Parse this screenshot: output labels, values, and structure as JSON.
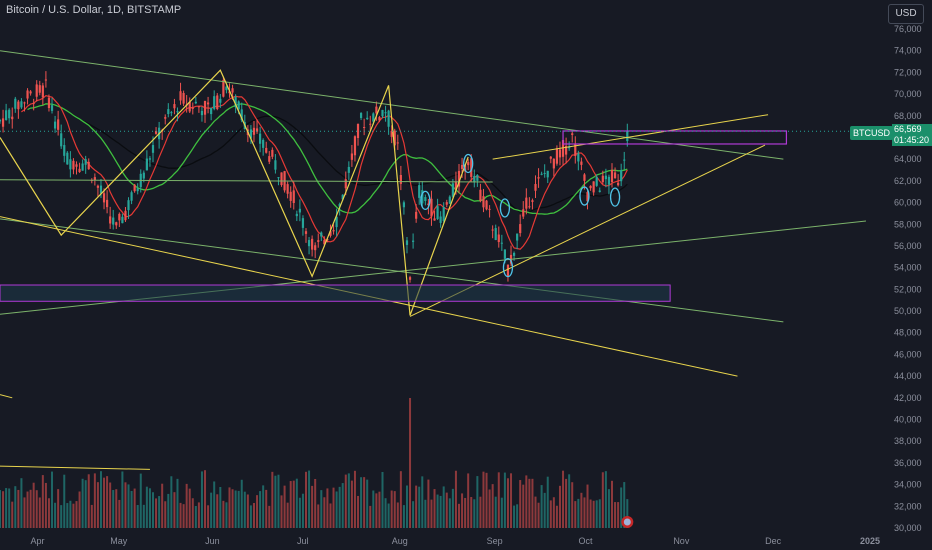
{
  "header": {
    "title": "Bitcoin / U.S. Dollar, 1D, BITSTAMP",
    "currency_button": "USD"
  },
  "price_badge": {
    "symbol": "BTCUSD",
    "price": "66,569",
    "countdown": "01:45:20"
  },
  "colors": {
    "background": "#171a24",
    "up": "#26a69a",
    "down": "#ef5350",
    "ma_black": "#0a0c10",
    "ma_red": "#e53935",
    "ma_green": "#3fbf3f",
    "trend_yellow": "#e8d44d",
    "trend_green": "#7cb36b",
    "zone_purple": "#b03ad6",
    "zone_fill": "#1e3a4a",
    "circle_cyan": "#4fc3e8"
  },
  "chart_data": {
    "type": "candlestick",
    "title": "Bitcoin / U.S. Dollar, 1D, BITSTAMP",
    "x_ticks": [
      "Apr",
      "May",
      "Jun",
      "Jul",
      "Aug",
      "Sep",
      "Oct",
      "Nov",
      "Dec",
      "2025"
    ],
    "y_ticks": [
      "76,000",
      "74,000",
      "72,000",
      "70,000",
      "68,000",
      "66,000",
      "64,000",
      "62,000",
      "60,000",
      "58,000",
      "56,000",
      "54,000",
      "52,000",
      "50,000",
      "48,000",
      "46,000",
      "44,000",
      "42,000",
      "40,000",
      "38,000",
      "36,000",
      "34,000",
      "32,000",
      "30,000"
    ],
    "ylim": [
      30000,
      77000
    ],
    "last_price": 66569,
    "close_series": [
      {
        "date": "2024-03-24",
        "close": 67500
      },
      {
        "date": "2024-04-01",
        "close": 69500
      },
      {
        "date": "2024-04-08",
        "close": 70500
      },
      {
        "date": "2024-04-15",
        "close": 64000
      },
      {
        "date": "2024-04-22",
        "close": 63500
      },
      {
        "date": "2024-05-01",
        "close": 57500
      },
      {
        "date": "2024-05-08",
        "close": 61500
      },
      {
        "date": "2024-05-15",
        "close": 66500
      },
      {
        "date": "2024-05-22",
        "close": 69500
      },
      {
        "date": "2024-06-01",
        "close": 68500
      },
      {
        "date": "2024-06-06",
        "close": 71000
      },
      {
        "date": "2024-06-12",
        "close": 67500
      },
      {
        "date": "2024-06-20",
        "close": 64500
      },
      {
        "date": "2024-06-27",
        "close": 61000
      },
      {
        "date": "2024-07-05",
        "close": 55500
      },
      {
        "date": "2024-07-12",
        "close": 58500
      },
      {
        "date": "2024-07-20",
        "close": 67500
      },
      {
        "date": "2024-07-28",
        "close": 68500
      },
      {
        "date": "2024-08-01",
        "close": 65000
      },
      {
        "date": "2024-08-05",
        "close": 53500
      },
      {
        "date": "2024-08-08",
        "close": 61000
      },
      {
        "date": "2024-08-15",
        "close": 58500
      },
      {
        "date": "2024-08-24",
        "close": 64000
      },
      {
        "date": "2024-09-01",
        "close": 58000
      },
      {
        "date": "2024-09-06",
        "close": 54000
      },
      {
        "date": "2024-09-13",
        "close": 60500
      },
      {
        "date": "2024-09-20",
        "close": 63500
      },
      {
        "date": "2024-09-27",
        "close": 66000
      },
      {
        "date": "2024-10-02",
        "close": 61000
      },
      {
        "date": "2024-10-08",
        "close": 62000
      },
      {
        "date": "2024-10-13",
        "close": 62500
      },
      {
        "date": "2024-10-15",
        "close": 66569
      }
    ]
  }
}
